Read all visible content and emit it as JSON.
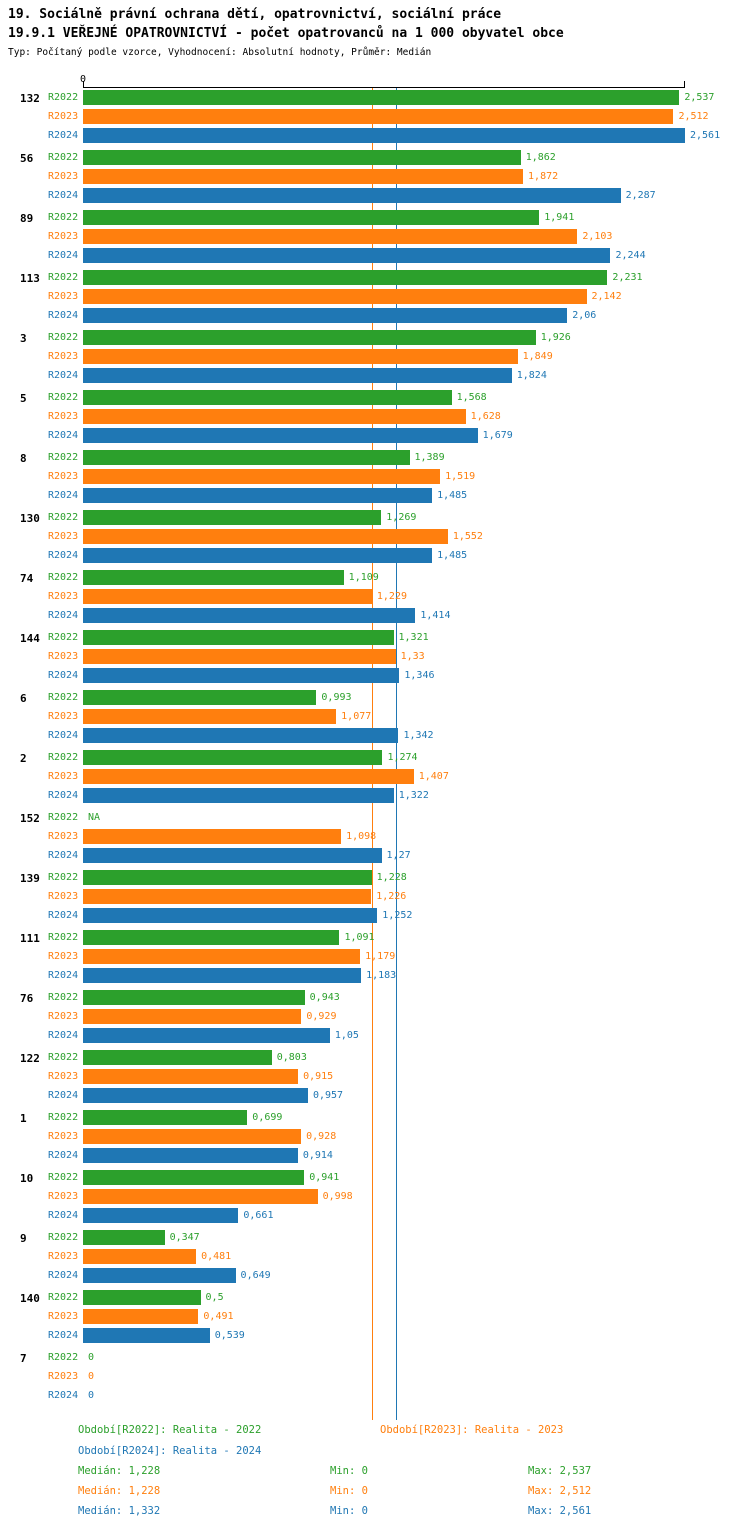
{
  "header": {
    "title_line1": "19. Sociálně právní ochrana dětí, opatrovnictví, sociální práce",
    "title_line2": "19.9.1 VEŘEJNÉ OPATROVNICTVÍ - počet opatrovanců na 1 000 obyvatel obce",
    "subtitle": "Typ: Počítaný podle vzorce, Vyhodnocení: Absolutní hodnoty, Průměr: Medián"
  },
  "chart_data": {
    "type": "bar",
    "orientation": "horizontal",
    "value_axis": {
      "min": 0,
      "max": 2.561,
      "zero_label": "0"
    },
    "legend_position": "bottom",
    "series": [
      {
        "name": "R2022",
        "color": "#2ca02c",
        "legend_label": "Období[R2022]: Realita - 2022",
        "median": 1.228,
        "median_text": "Medián: 1,228",
        "min_text": "Min: 0",
        "max_text": "Max: 2,537"
      },
      {
        "name": "R2023",
        "color": "#ff7f0e",
        "legend_label": "Období[R2023]: Realita - 2023",
        "median": 1.228,
        "median_text": "Medián: 1,228",
        "min_text": "Min: 0",
        "max_text": "Max: 2,512"
      },
      {
        "name": "R2024",
        "color": "#1f77b4",
        "legend_label": "Období[R2024]: Realita - 2024",
        "median": 1.332,
        "median_text": "Medián: 1,332",
        "min_text": "Min: 0",
        "max_text": "Max: 2,561"
      }
    ],
    "groups": [
      {
        "label": "132",
        "values": [
          "2,537",
          "2,512",
          "2,561"
        ]
      },
      {
        "label": "56",
        "values": [
          "1,862",
          "1,872",
          "2,287"
        ]
      },
      {
        "label": "89",
        "values": [
          "1,941",
          "2,103",
          "2,244"
        ]
      },
      {
        "label": "113",
        "values": [
          "2,231",
          "2,142",
          "2,06"
        ]
      },
      {
        "label": "3",
        "values": [
          "1,926",
          "1,849",
          "1,824"
        ]
      },
      {
        "label": "5",
        "values": [
          "1,568",
          "1,628",
          "1,679"
        ]
      },
      {
        "label": "8",
        "values": [
          "1,389",
          "1,519",
          "1,485"
        ]
      },
      {
        "label": "130",
        "values": [
          "1,269",
          "1,552",
          "1,485"
        ]
      },
      {
        "label": "74",
        "values": [
          "1,109",
          "1,229",
          "1,414"
        ]
      },
      {
        "label": "144",
        "values": [
          "1,321",
          "1,33",
          "1,346"
        ]
      },
      {
        "label": "6",
        "values": [
          "0,993",
          "1,077",
          "1,342"
        ]
      },
      {
        "label": "2",
        "values": [
          "1,274",
          "1,407",
          "1,322"
        ]
      },
      {
        "label": "152",
        "values": [
          "NA",
          "1,098",
          "1,27"
        ]
      },
      {
        "label": "139",
        "values": [
          "1,228",
          "1,226",
          "1,252"
        ]
      },
      {
        "label": "111",
        "values": [
          "1,091",
          "1,179",
          "1,183"
        ]
      },
      {
        "label": "76",
        "values": [
          "0,943",
          "0,929",
          "1,05"
        ]
      },
      {
        "label": "122",
        "values": [
          "0,803",
          "0,915",
          "0,957"
        ]
      },
      {
        "label": "1",
        "values": [
          "0,699",
          "0,928",
          "0,914"
        ]
      },
      {
        "label": "10",
        "values": [
          "0,941",
          "0,998",
          "0,661"
        ]
      },
      {
        "label": "9",
        "values": [
          "0,347",
          "0,481",
          "0,649"
        ]
      },
      {
        "label": "140",
        "values": [
          "0,5",
          "0,491",
          "0,539"
        ]
      },
      {
        "label": "7",
        "values": [
          "0",
          "0",
          "0"
        ]
      }
    ]
  }
}
